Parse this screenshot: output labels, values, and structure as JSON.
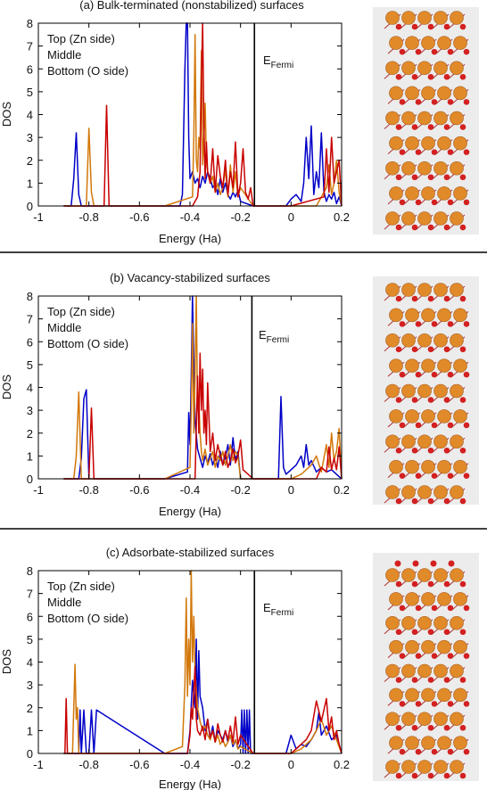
{
  "chart_data": [
    {
      "type": "line",
      "title": "(a) Bulk-terminated (nonstabilized) surfaces",
      "xlabel": "Energy (Ha)",
      "ylabel": "DOS",
      "xlim": [
        -1,
        0.2
      ],
      "ylim": [
        0,
        8
      ],
      "xticks": [
        "-1",
        "-0.8",
        "-0.6",
        "-0.4",
        "-0.2",
        "0",
        "0.2"
      ],
      "yticks": [
        "0",
        "1",
        "2",
        "3",
        "4",
        "5",
        "6",
        "7",
        "8"
      ],
      "fermi_energy": -0.145,
      "fermi_label": "E",
      "fermi_sub": "Fermi",
      "legend_position": "top-left",
      "series": [
        {
          "name": "Top (Zn side)",
          "color": "#0000c8",
          "x": [
            -0.9,
            -0.87,
            -0.86,
            -0.85,
            -0.84,
            -0.83,
            -0.5,
            -0.44,
            -0.43,
            -0.42,
            -0.415,
            -0.41,
            -0.405,
            -0.4,
            -0.39,
            -0.38,
            -0.37,
            -0.36,
            -0.35,
            -0.34,
            -0.33,
            -0.32,
            -0.31,
            -0.3,
            -0.29,
            -0.28,
            -0.27,
            -0.26,
            -0.25,
            -0.24,
            -0.23,
            -0.22,
            -0.21,
            -0.2,
            -0.15,
            -0.02,
            0.0,
            0.02,
            0.04,
            0.05,
            0.06,
            0.07,
            0.08,
            0.09,
            0.1,
            0.11,
            0.12,
            0.13,
            0.14,
            0.15,
            0.16,
            0.17,
            0.18,
            0.19,
            0.2
          ],
          "y": [
            0,
            0,
            1.2,
            3.2,
            0.5,
            0,
            0,
            0,
            0.5,
            6,
            9,
            8.5,
            3,
            1.2,
            1.5,
            1.0,
            1.2,
            0.8,
            1.3,
            1.0,
            1.5,
            1.2,
            0.8,
            1.0,
            0.5,
            1.2,
            0.6,
            1.0,
            0.5,
            0.3,
            0.6,
            0.4,
            0.7,
            0.2,
            0,
            0,
            0.3,
            0.5,
            0.2,
            1.0,
            3.0,
            1.2,
            3.5,
            0.5,
            1.5,
            0.8,
            3.2,
            0.6,
            0.2,
            0.5,
            0.3,
            0.6,
            0.1,
            0.4,
            0
          ]
        },
        {
          "name": "Middle",
          "color": "#d2780a",
          "x": [
            -0.9,
            -0.81,
            -0.8,
            -0.79,
            -0.78,
            -0.5,
            -0.39,
            -0.385,
            -0.38,
            -0.375,
            -0.37,
            -0.365,
            -0.36,
            -0.355,
            -0.35,
            -0.345,
            -0.34,
            -0.335,
            -0.33,
            -0.32,
            -0.31,
            -0.3,
            -0.29,
            -0.28,
            -0.27,
            -0.26,
            -0.25,
            -0.24,
            -0.23,
            -0.22,
            -0.21,
            -0.2,
            -0.15,
            0.0,
            0.1,
            0.12,
            0.14,
            0.15,
            0.16,
            0.17,
            0.18,
            0.19,
            0.2
          ],
          "y": [
            0,
            0,
            3.4,
            0.6,
            0,
            0,
            0.4,
            3.0,
            7.5,
            2.0,
            1.5,
            3.0,
            2.5,
            6.8,
            1.8,
            3.0,
            4.5,
            2.0,
            1.5,
            1.0,
            1.3,
            0.6,
            1.0,
            0.5,
            0.8,
            1.6,
            0.4,
            1.8,
            0.6,
            1.5,
            0.4,
            0.8,
            0,
            0,
            0,
            0.4,
            0.8,
            1.8,
            0.5,
            1.0,
            2.0,
            0.6,
            0
          ]
        },
        {
          "name": "Bottom (O side)",
          "color": "#c80000",
          "x": [
            -0.9,
            -0.74,
            -0.73,
            -0.72,
            -0.5,
            -0.39,
            -0.37,
            -0.36,
            -0.355,
            -0.35,
            -0.345,
            -0.34,
            -0.335,
            -0.33,
            -0.32,
            -0.31,
            -0.3,
            -0.29,
            -0.28,
            -0.27,
            -0.26,
            -0.25,
            -0.24,
            -0.23,
            -0.22,
            -0.21,
            -0.2,
            -0.19,
            -0.18,
            -0.17,
            -0.16,
            -0.15,
            0.0,
            0.13,
            0.14,
            0.15,
            0.16,
            0.17,
            0.18,
            0.19,
            0.2
          ],
          "y": [
            0,
            0,
            4.4,
            0,
            0,
            0,
            0.4,
            1.5,
            5.5,
            8.2,
            3.5,
            1.2,
            2.8,
            1.5,
            1.0,
            2.5,
            0.6,
            2.2,
            1.3,
            0.8,
            2.0,
            0.5,
            1.5,
            0.8,
            2.8,
            0.4,
            1.0,
            2.5,
            0.6,
            0.3,
            0.8,
            0,
            0,
            0.4,
            2.5,
            0.6,
            3.0,
            1.0,
            1.5,
            2.0,
            0
          ]
        }
      ]
    },
    {
      "type": "line",
      "title": "(b) Vacancy-stabilized surfaces",
      "xlabel": "Energy (Ha)",
      "ylabel": "DOS",
      "xlim": [
        -1,
        0.2
      ],
      "ylim": [
        0,
        8
      ],
      "xticks": [
        "-1",
        "-0.8",
        "-0.6",
        "-0.4",
        "-0.2",
        "0",
        "0.2"
      ],
      "yticks": [
        "0",
        "1",
        "2",
        "3",
        "4",
        "5",
        "6",
        "7",
        "8"
      ],
      "fermi_energy": -0.155,
      "fermi_label": "E",
      "fermi_sub": "Fermi",
      "legend_position": "top-left",
      "series": [
        {
          "name": "Top (Zn side)",
          "color": "#0000c8",
          "x": [
            -0.9,
            -0.84,
            -0.83,
            -0.82,
            -0.81,
            -0.8,
            -0.5,
            -0.41,
            -0.405,
            -0.4,
            -0.395,
            -0.39,
            -0.385,
            -0.38,
            -0.37,
            -0.36,
            -0.35,
            -0.34,
            -0.33,
            -0.32,
            -0.31,
            -0.3,
            -0.29,
            -0.28,
            -0.27,
            -0.26,
            -0.25,
            -0.24,
            -0.23,
            -0.22,
            -0.21,
            -0.2,
            -0.15,
            -0.05,
            -0.04,
            -0.03,
            -0.02,
            0.0,
            0.02,
            0.04,
            0.05,
            0.06,
            0.07,
            0.08,
            0.1,
            0.12,
            0.14,
            0.16,
            0.18,
            0.2
          ],
          "y": [
            0,
            0,
            0.9,
            3.5,
            3.9,
            0,
            0,
            0.3,
            2.9,
            1.5,
            4.5,
            8.0,
            5.0,
            2.5,
            1.3,
            0.9,
            0.5,
            1.0,
            0.7,
            1.1,
            0.6,
            1.0,
            0.5,
            1.2,
            0.6,
            0.9,
            1.5,
            0.6,
            1.8,
            0.8,
            1.2,
            0,
            0,
            0,
            3.6,
            0.5,
            0.2,
            0.4,
            0.6,
            1.0,
            0.5,
            1.5,
            0.6,
            0.8,
            0.3,
            0.5,
            0.3,
            0.4,
            0.2,
            0
          ]
        },
        {
          "name": "Middle",
          "color": "#d2780a",
          "x": [
            -0.9,
            -0.86,
            -0.85,
            -0.84,
            -0.83,
            -0.5,
            -0.4,
            -0.395,
            -0.39,
            -0.385,
            -0.38,
            -0.375,
            -0.37,
            -0.365,
            -0.36,
            -0.355,
            -0.35,
            -0.34,
            -0.33,
            -0.32,
            -0.31,
            -0.3,
            -0.29,
            -0.28,
            -0.27,
            -0.26,
            -0.25,
            -0.24,
            -0.23,
            -0.22,
            -0.21,
            -0.2,
            -0.15,
            0.0,
            0.04,
            0.06,
            0.08,
            0.1,
            0.12,
            0.14,
            0.15,
            0.16,
            0.17,
            0.18,
            0.19,
            0.2
          ],
          "y": [
            0,
            0,
            1.0,
            3.8,
            0,
            0,
            0.5,
            3.0,
            6.8,
            2.0,
            4.5,
            8.5,
            3.0,
            3.5,
            2.0,
            1.2,
            0.8,
            1.3,
            0.6,
            0.9,
            1.2,
            0.5,
            1.0,
            0.8,
            1.2,
            0.6,
            1.0,
            1.5,
            0.8,
            1.2,
            1.0,
            0,
            0,
            0,
            0.2,
            0.4,
            0.6,
            1.0,
            0.3,
            1.5,
            0.5,
            2.0,
            0.8,
            1.2,
            2.2,
            0
          ]
        },
        {
          "name": "Bottom (O side)",
          "color": "#c80000",
          "x": [
            -0.9,
            -0.8,
            -0.79,
            -0.78,
            -0.5,
            -0.38,
            -0.37,
            -0.365,
            -0.36,
            -0.355,
            -0.35,
            -0.345,
            -0.34,
            -0.335,
            -0.33,
            -0.32,
            -0.31,
            -0.3,
            -0.29,
            -0.28,
            -0.27,
            -0.26,
            -0.25,
            -0.24,
            -0.23,
            -0.22,
            -0.21,
            -0.2,
            -0.19,
            -0.15,
            0.0,
            0.1,
            0.12,
            0.14,
            0.15,
            0.16,
            0.17,
            0.18,
            0.19,
            0.2
          ],
          "y": [
            0,
            0,
            3.1,
            0,
            0,
            0,
            4.5,
            2.0,
            5.5,
            3.0,
            4.8,
            2.0,
            3.0,
            1.5,
            4.2,
            1.2,
            2.0,
            0.8,
            1.5,
            1.0,
            0.6,
            1.2,
            0.5,
            0.8,
            1.3,
            0.7,
            1.0,
            1.7,
            0.4,
            0,
            0,
            0,
            0.5,
            0.3,
            1.4,
            0.4,
            0.9,
            0.4,
            1.4,
            0
          ]
        }
      ]
    },
    {
      "type": "line",
      "title": "(c) Adsorbate-stabilized surfaces",
      "xlabel": "Energy (Ha)",
      "ylabel": "DOS",
      "xlim": [
        -1,
        0.2
      ],
      "ylim": [
        0,
        8
      ],
      "xticks": [
        "-1",
        "-0.8",
        "-0.6",
        "-0.4",
        "-0.2",
        "0",
        "0.2"
      ],
      "yticks": [
        "0",
        "1",
        "2",
        "3",
        "4",
        "5",
        "6",
        "7",
        "8"
      ],
      "fermi_energy": -0.145,
      "fermi_label": "E",
      "fermi_sub": "Fermi",
      "legend_position": "top-left",
      "series": [
        {
          "name": "Top (Zn side)",
          "color": "#0000c8",
          "x": [
            -0.9,
            -0.84,
            -0.835,
            -0.83,
            -0.82,
            -0.81,
            -0.8,
            -0.79,
            -0.78,
            -0.77,
            -0.5,
            -0.41,
            -0.4,
            -0.39,
            -0.38,
            -0.375,
            -0.37,
            -0.365,
            -0.36,
            -0.35,
            -0.34,
            -0.33,
            -0.32,
            -0.31,
            -0.3,
            -0.29,
            -0.28,
            -0.27,
            -0.26,
            -0.25,
            -0.24,
            -0.23,
            -0.22,
            -0.21,
            -0.2,
            -0.195,
            -0.19,
            -0.185,
            -0.18,
            -0.175,
            -0.17,
            -0.165,
            -0.16,
            -0.14,
            -0.02,
            0.0,
            0.02,
            0.04,
            0.06,
            0.08,
            0.1,
            0.11,
            0.12,
            0.14,
            0.16,
            0.18,
            0.2
          ],
          "y": [
            0,
            0,
            1.9,
            0,
            1.9,
            0,
            0,
            1.9,
            0,
            1.9,
            0,
            0,
            1.0,
            3.2,
            2.0,
            5.0,
            1.5,
            4.5,
            2.5,
            2.0,
            1.0,
            1.5,
            0.6,
            1.2,
            0.5,
            1.0,
            0.8,
            0.6,
            1.0,
            0.5,
            0.8,
            0.3,
            0.6,
            0.2,
            0.4,
            1.9,
            0,
            1.9,
            0,
            1.9,
            0,
            1.9,
            0,
            0,
            0,
            0.8,
            0.2,
            0.4,
            0.3,
            0.6,
            1.0,
            1.8,
            0.8,
            1.2,
            0.6,
            0.8,
            0
          ]
        },
        {
          "name": "Middle",
          "color": "#d2780a",
          "x": [
            -0.9,
            -0.865,
            -0.86,
            -0.855,
            -0.85,
            -0.845,
            -0.84,
            -0.5,
            -0.43,
            -0.42,
            -0.415,
            -0.41,
            -0.405,
            -0.4,
            -0.395,
            -0.39,
            -0.385,
            -0.38,
            -0.37,
            -0.36,
            -0.35,
            -0.34,
            -0.33,
            -0.32,
            -0.31,
            -0.3,
            -0.29,
            -0.28,
            -0.27,
            -0.26,
            -0.25,
            -0.24,
            -0.23,
            -0.22,
            -0.21,
            -0.2,
            -0.15,
            0.0,
            0.04,
            0.06,
            0.08,
            0.1,
            0.12,
            0.14,
            0.16,
            0.18,
            0.2
          ],
          "y": [
            0,
            0,
            2.0,
            3.9,
            1.5,
            2.0,
            0,
            0,
            0.3,
            3.0,
            6.8,
            2.5,
            5.0,
            3.0,
            8.5,
            4.0,
            6.0,
            3.5,
            2.0,
            1.4,
            1.0,
            1.2,
            0.8,
            0.6,
            1.0,
            0.5,
            0.8,
            0.4,
            0.6,
            0.3,
            0.5,
            0.8,
            0.4,
            0.6,
            0.2,
            0.3,
            0,
            0,
            0.2,
            0.4,
            0.6,
            1.0,
            1.5,
            0.8,
            1.2,
            0.6,
            0
          ]
        },
        {
          "name": "Bottom (O side)",
          "color": "#c80000",
          "x": [
            -0.9,
            -0.895,
            -0.89,
            -0.885,
            -0.5,
            -0.41,
            -0.4,
            -0.395,
            -0.39,
            -0.385,
            -0.38,
            -0.375,
            -0.37,
            -0.36,
            -0.35,
            -0.34,
            -0.33,
            -0.32,
            -0.31,
            -0.3,
            -0.29,
            -0.28,
            -0.27,
            -0.26,
            -0.25,
            -0.24,
            -0.23,
            -0.22,
            -0.21,
            -0.2,
            -0.15,
            0.0,
            0.06,
            0.08,
            0.1,
            0.12,
            0.14,
            0.15,
            0.16,
            0.17,
            0.18,
            0.19,
            0.2
          ],
          "y": [
            0,
            0,
            2.4,
            0,
            0,
            0,
            0.8,
            2.0,
            1.5,
            2.8,
            3.8,
            1.5,
            1.0,
            0.8,
            1.2,
            0.6,
            1.5,
            0.7,
            1.0,
            0.5,
            1.3,
            0.8,
            0.5,
            1.0,
            0.6,
            1.2,
            0.5,
            1.6,
            0.4,
            0.8,
            0,
            0,
            0.6,
            1.0,
            2.3,
            1.4,
            2.4,
            1.0,
            1.6,
            0.6,
            1.0,
            0.4,
            0
          ]
        }
      ]
    }
  ]
}
